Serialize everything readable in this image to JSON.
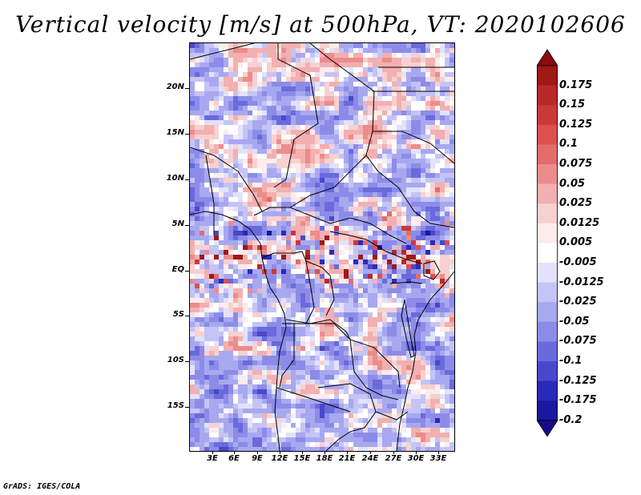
{
  "title": "Vertical velocity [m/s] at 500hPa, VT: 2020102606",
  "latitude_labels": [
    "20N",
    "15N",
    "10N",
    "5N",
    "EQ",
    "5S",
    "10S",
    "15S"
  ],
  "longitude_labels": [
    "3E",
    "6E",
    "9E",
    "12E",
    "15E",
    "18E",
    "21E",
    "24E",
    "27E",
    "30E",
    "33E"
  ],
  "colorbar": {
    "labels": [
      "0.175",
      "0.15",
      "0.125",
      "0.1",
      "0.075",
      "0.05",
      "0.025",
      "0.0125",
      "0.005",
      "-0.005",
      "-0.0125",
      "-0.025",
      "-0.05",
      "-0.075",
      "-0.1",
      "-0.125",
      "-0.175",
      "-0.2"
    ],
    "colors": [
      "#a01818",
      "#b82828",
      "#cc3838",
      "#dc5050",
      "#e46c6c",
      "#ec8c8c",
      "#f2b0b0",
      "#f8d0d0",
      "#fcecec",
      "#ffffff",
      "#e2e2fc",
      "#c4c4f6",
      "#a8a8f0",
      "#8c8ce8",
      "#6a6adc",
      "#4848cc",
      "#2a2ab8",
      "#1818a0"
    ],
    "top_arrow_color": "#8a0c0c",
    "bottom_arrow_color": "#1a0a8a"
  },
  "credit": "GrADS: IGES/COLA"
}
